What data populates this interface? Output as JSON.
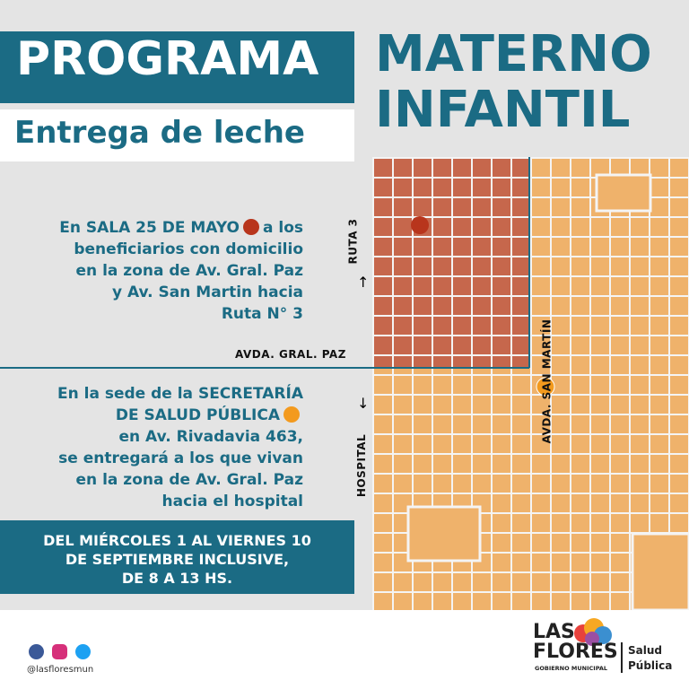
{
  "title": {
    "line1": "PROGRAMA",
    "line2": "MATERNO",
    "line3": "INFANTIL"
  },
  "subtitle": "Entrega de leche",
  "info1": {
    "lines": [
      "En SALA 25 DE MAYO",
      "a los",
      "beneficiarios con domicilio",
      "en la zona de Av. Gral. Paz",
      "y Av. San Martin hacia",
      "Ruta N° 3"
    ]
  },
  "info2": {
    "lines": [
      "En la sede de la SECRETARÍA",
      "DE SALUD PÚBLICA",
      "en Av. Rivadavia 463,",
      "se entregará a los que vivan",
      "en la zona de Av. Gral. Paz",
      "hacia el hospital"
    ]
  },
  "map": {
    "labels": [
      "RUTA 3",
      "AVDA. GRAL. PAZ",
      "AVDA. SAN MARTÍN",
      "HOSPITAL"
    ]
  },
  "dates": {
    "lines": [
      "DEL MIÉRCOLES 1 AL VIERNES 10",
      "DE SEPTIEMBRE INCLUSIVE,",
      "DE 8 A 13 HS."
    ]
  },
  "footer": {
    "handle": "@lasfloresmun",
    "logo": {
      "line1": "LAS",
      "line2": "FLORES",
      "tagline": "GOBIERNO MUNICIPAL",
      "area1": "Salud",
      "area2": "Pública"
    }
  }
}
